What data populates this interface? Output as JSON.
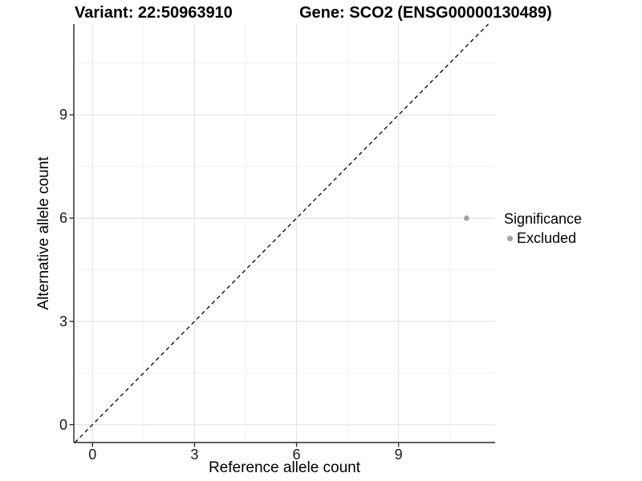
{
  "titles": {
    "variant": "Variant: 22:50963910",
    "gene": "Gene: SCO2 (ENSG00000130489)"
  },
  "chart_data": {
    "type": "scatter",
    "xlabel": "Reference allele count",
    "ylabel": "Alternative allele count",
    "x_ticks": [
      0,
      3,
      6,
      9
    ],
    "y_ticks": [
      0,
      3,
      6,
      9
    ],
    "x_minor_ticks": [
      1.5,
      4.5,
      7.5,
      10.5
    ],
    "y_minor_ticks": [
      1.5,
      4.5,
      7.5,
      10.5
    ],
    "xlim": [
      -0.55,
      11.84
    ],
    "ylim": [
      -0.52,
      11.64
    ],
    "grid": true,
    "points": [
      {
        "x": 11,
        "y": 6,
        "series": "Excluded",
        "color": "#a3a3a3"
      }
    ],
    "reference_line": {
      "slope": 1,
      "intercept": 0,
      "style": "dashed",
      "color": "#000000"
    },
    "legend": {
      "position": "right",
      "title": "Significance",
      "items": [
        {
          "label": "Excluded",
          "color": "#a3a3a3"
        }
      ]
    },
    "colors": {
      "excluded_point": "#a3a3a3",
      "major_gridline": "#e4e4e4",
      "minor_gridline": "#f1f1f1",
      "axis_line": "#4a4a4a",
      "identity_line": "#000000"
    }
  }
}
